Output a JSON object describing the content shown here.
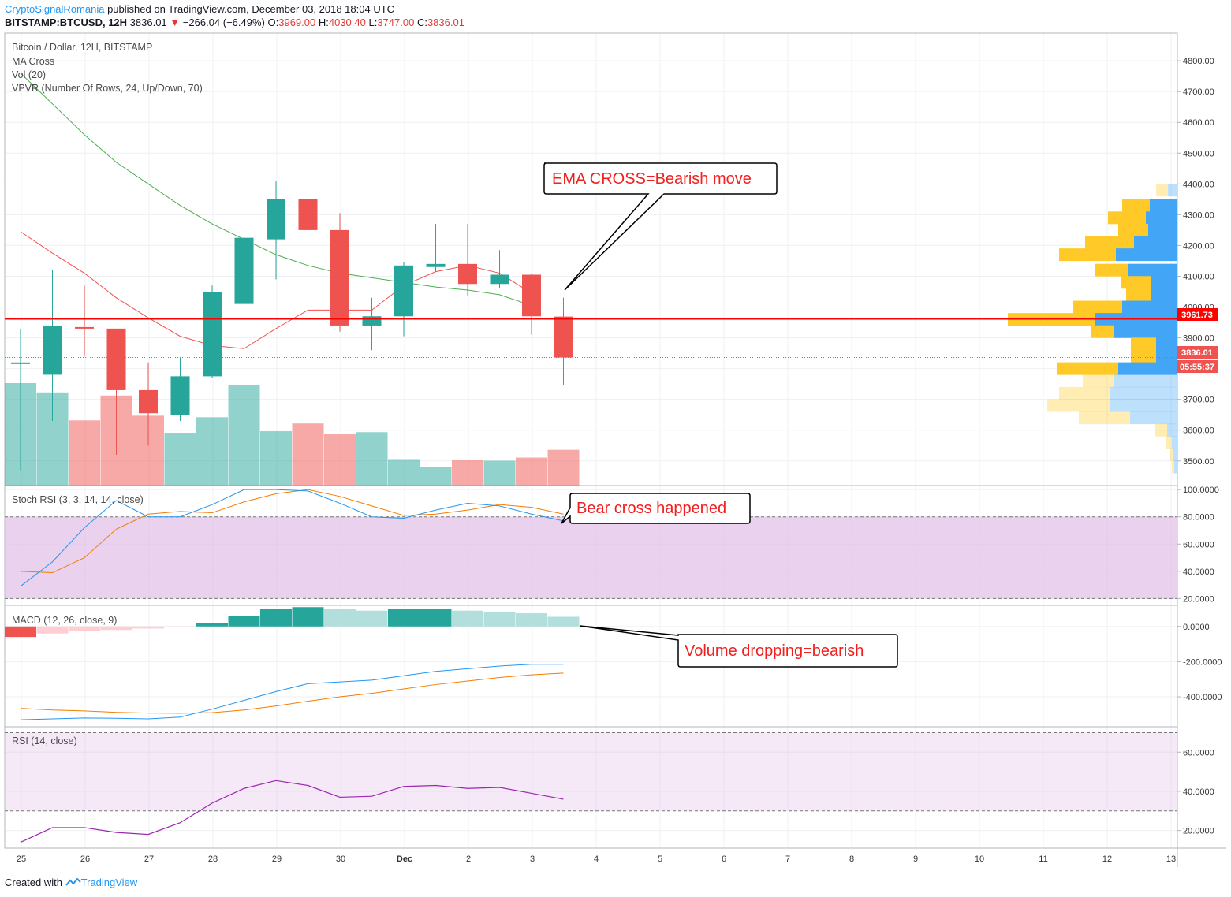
{
  "header": {
    "author": "CryptoSignalRomania",
    "published": " published on TradingView.com, December 03, 2018 18:04 UTC",
    "symbol": "BITSTAMP:BTCUSD, 12H",
    "last": "3836.01",
    "change_arrow": "▼",
    "change": "−266.04 (−6.49%)",
    "o_label": "O:",
    "o": "3969.00",
    "h_label": "H:",
    "h": "4030.40",
    "l_label": "L:",
    "l": "3747.00",
    "c_label": "C:",
    "c": "3836.01"
  },
  "legend": {
    "title": "Bitcoin / Dollar, 12H, BITSTAMP",
    "ma": "MA Cross",
    "vol": "Vol (20)",
    "vpvr": "VPVR (Number Of Rows, 24, Up/Down, 70)",
    "stoch": "Stoch RSI (3, 3, 14, 14, close)",
    "macd": "MACD (12, 26, close, 9)",
    "rsi": "RSI (14, close)"
  },
  "annotations": {
    "ema": "EMA CROSS=Bearish move",
    "bear": "Bear cross happened",
    "volume": "Volume dropping=bearish"
  },
  "price_tags": {
    "line": "3961.73",
    "close": "3836.01",
    "countdown": "05:55:37"
  },
  "footer": {
    "created": "Created with",
    "brand": "TradingView"
  },
  "colors": {
    "up": "#26a69a",
    "down": "#ef5350",
    "ma_short": "#ef5350",
    "ma_long": "#4caf50",
    "stoch_k": "#2196f3",
    "stoch_d": "#f57c00",
    "rsi": "#9c27b0",
    "band": "#e1bee7"
  },
  "chart_data": [
    {
      "type": "candlestick",
      "title": "Bitcoin / Dollar, 12H, BITSTAMP",
      "x_ticks": [
        "25",
        "26",
        "27",
        "28",
        "29",
        "30",
        "Dec",
        "2",
        "3",
        "4",
        "5",
        "6",
        "7",
        "8",
        "9",
        "10",
        "11",
        "12",
        "13"
      ],
      "y_ticks": [
        "4800.00",
        "4700.00",
        "4600.00",
        "4500.00",
        "4400.00",
        "4300.00",
        "4200.00",
        "4100.00",
        "4000.00",
        "3900.00",
        "3800.00",
        "3700.00",
        "3600.00",
        "3500.00"
      ],
      "ylim": [
        3420,
        4890
      ],
      "candles": [
        {
          "o": 3820,
          "h": 3930,
          "l": 3470,
          "c": 3820
        },
        {
          "o": 3780,
          "h": 4120,
          "l": 3630,
          "c": 3940
        },
        {
          "o": 3935,
          "h": 4070,
          "l": 3840,
          "c": 3930
        },
        {
          "o": 3930,
          "h": 3930,
          "l": 3520,
          "c": 3730
        },
        {
          "o": 3730,
          "h": 3820,
          "l": 3550,
          "c": 3655
        },
        {
          "o": 3650,
          "h": 3835,
          "l": 3630,
          "c": 3775
        },
        {
          "o": 3775,
          "h": 4070,
          "l": 3770,
          "c": 4050
        },
        {
          "o": 4010,
          "h": 4360,
          "l": 3980,
          "c": 4225
        },
        {
          "o": 4220,
          "h": 4410,
          "l": 4090,
          "c": 4350
        },
        {
          "o": 4350,
          "h": 4360,
          "l": 4110,
          "c": 4250
        },
        {
          "o": 4250,
          "h": 4305,
          "l": 3920,
          "c": 3940
        },
        {
          "o": 3940,
          "h": 4030,
          "l": 3860,
          "c": 3970
        },
        {
          "o": 3970,
          "h": 4145,
          "l": 3905,
          "c": 4135
        },
        {
          "o": 4130,
          "h": 4270,
          "l": 4115,
          "c": 4140
        },
        {
          "o": 4140,
          "h": 4270,
          "l": 4035,
          "c": 4075
        },
        {
          "o": 4075,
          "h": 4185,
          "l": 4060,
          "c": 4105
        },
        {
          "o": 4105,
          "h": 4110,
          "l": 3910,
          "c": 3970
        },
        {
          "o": 3969,
          "h": 4030.4,
          "l": 3747,
          "c": 3836.01
        }
      ],
      "ma_short": [
        4245,
        4175,
        4110,
        4030,
        3965,
        3905,
        3875,
        3865,
        3930,
        3990,
        3990,
        3990,
        4070,
        4115,
        4135,
        4110,
        4045
      ],
      "ma_long": [
        4760,
        4660,
        4560,
        4470,
        4400,
        4330,
        4270,
        4220,
        4170,
        4135,
        4110,
        4095,
        4080,
        4065,
        4055,
        4040,
        4005
      ],
      "volume": [
        330,
        300,
        210,
        290,
        225,
        170,
        220,
        325,
        175,
        200,
        165,
        172,
        85,
        60,
        82,
        80,
        90,
        115
      ],
      "volume_profile": [
        {
          "price": 4380,
          "buy": 15,
          "sell": 12,
          "faded": true
        },
        {
          "price": 4330,
          "buy": 35,
          "sell": 35
        },
        {
          "price": 4290,
          "buy": 48,
          "sell": 40
        },
        {
          "price": 4250,
          "buy": 38,
          "sell": 37
        },
        {
          "price": 4210,
          "buy": 62,
          "sell": 55
        },
        {
          "price": 4170,
          "buy": 72,
          "sell": 78
        },
        {
          "price": 4120,
          "buy": 42,
          "sell": 63
        },
        {
          "price": 4080,
          "buy": 38,
          "sell": 33
        },
        {
          "price": 4040,
          "buy": 32,
          "sell": 33
        },
        {
          "price": 4000,
          "buy": 62,
          "sell": 70
        },
        {
          "price": 3960,
          "buy": 110,
          "sell": 105
        },
        {
          "price": 3920,
          "buy": 30,
          "sell": 80
        },
        {
          "price": 3880,
          "buy": 32,
          "sell": 27
        },
        {
          "price": 3840,
          "buy": 32,
          "sell": 27
        },
        {
          "price": 3800,
          "buy": 78,
          "sell": 75
        },
        {
          "price": 3760,
          "buy": 40,
          "sell": 80,
          "faded": true
        },
        {
          "price": 3720,
          "buy": 65,
          "sell": 85,
          "faded": true
        },
        {
          "price": 3680,
          "buy": 80,
          "sell": 85,
          "faded": true
        },
        {
          "price": 3640,
          "buy": 65,
          "sell": 60,
          "faded": true
        },
        {
          "price": 3600,
          "buy": 15,
          "sell": 13,
          "faded": true
        },
        {
          "price": 3560,
          "buy": 8,
          "sell": 7,
          "faded": true
        },
        {
          "price": 3520,
          "buy": 4,
          "sell": 5,
          "faded": true
        },
        {
          "price": 3480,
          "buy": 3,
          "sell": 4,
          "faded": true
        }
      ],
      "price_line": 3961.73,
      "close_line": 3836.01
    },
    {
      "type": "line",
      "title": "Stoch RSI (3, 3, 14, 14, close)",
      "y_ticks": [
        "100.0000",
        "80.0000",
        "60.0000",
        "40.0000",
        "20.0000"
      ],
      "ylim": [
        15,
        103
      ],
      "band": [
        20,
        80
      ],
      "series": [
        {
          "values": [
            29,
            47,
            72,
            92,
            80,
            80,
            89,
            100,
            100,
            99,
            90,
            80,
            79,
            85,
            90,
            88,
            82,
            77
          ]
        },
        {
          "values": [
            40,
            39,
            50,
            71,
            82,
            84,
            83,
            91,
            97,
            100,
            95,
            88,
            81,
            82,
            85,
            89,
            87,
            82
          ]
        }
      ]
    },
    {
      "type": "bar",
      "title": "MACD (12, 26, close, 9)",
      "y_ticks": [
        "0.0000",
        "-200.0000",
        "-400.0000"
      ],
      "ylim": [
        -570,
        120
      ],
      "histogram": [
        -60,
        -40,
        -28,
        -20,
        -12,
        -4,
        20,
        60,
        100,
        110,
        100,
        90,
        100,
        100,
        90,
        80,
        75,
        55
      ],
      "series": [
        {
          "values": [
            -530,
            -525,
            -520,
            -522,
            -525,
            -515,
            -470,
            -420,
            -370,
            -325,
            -315,
            -305,
            -280,
            -255,
            -240,
            -225,
            -215,
            -215
          ]
        },
        {
          "values": [
            -465,
            -475,
            -480,
            -488,
            -492,
            -493,
            -490,
            -475,
            -452,
            -425,
            -400,
            -380,
            -355,
            -330,
            -310,
            -290,
            -275,
            -265
          ]
        }
      ]
    },
    {
      "type": "line",
      "title": "RSI (14, close)",
      "y_ticks": [
        "60.0000",
        "40.0000",
        "20.0000"
      ],
      "ylim": [
        11,
        73
      ],
      "band": [
        30,
        70
      ],
      "series": [
        {
          "values": [
            14,
            21.5,
            21.5,
            19,
            18,
            24,
            34,
            41.5,
            45.5,
            43,
            37,
            37.5,
            42.5,
            43,
            41.5,
            42,
            39,
            36
          ]
        }
      ]
    }
  ]
}
